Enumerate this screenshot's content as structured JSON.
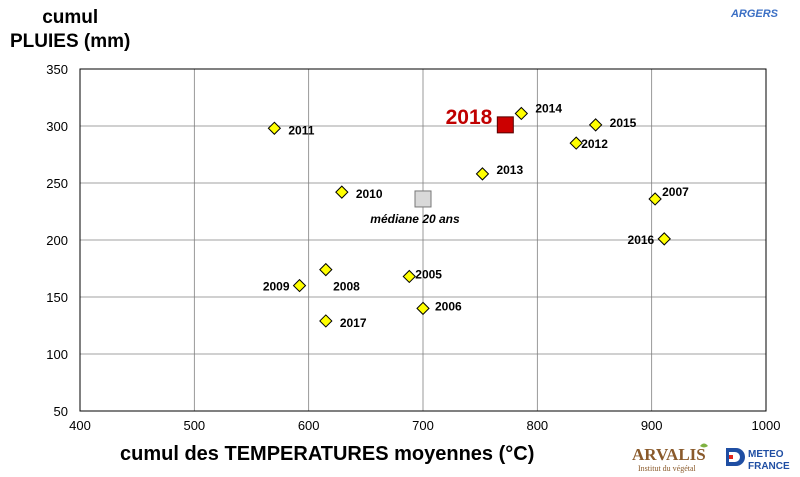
{
  "header": {
    "ylabel_line1": "cumul",
    "ylabel_line2": "PLUIES (mm)",
    "station": "ARGERS"
  },
  "footer": {
    "xlabel": "cumul des TEMPERATURES moyennes (°C)"
  },
  "logos": {
    "arvalis_name": "ARVALIS",
    "arvalis_sub": "Institut du végétal",
    "meteo_line1": "METEO",
    "meteo_line2": "FRANCE"
  },
  "colors": {
    "point_fill": "#ffff00",
    "highlight": "#cc0000",
    "highlight_label": "#c00000",
    "median_fill": "#d9d9d9",
    "grid": "#808080"
  },
  "chart_data": {
    "type": "scatter",
    "xlabel": "cumul des TEMPERATURES moyennes (°C)",
    "ylabel": "cumul PLUIES (mm)",
    "xlim": [
      400,
      1000
    ],
    "ylim": [
      50,
      350
    ],
    "xticks": [
      400,
      500,
      600,
      700,
      800,
      900,
      1000
    ],
    "yticks": [
      50,
      100,
      150,
      200,
      250,
      300,
      350
    ],
    "grid": true,
    "points": [
      {
        "label": "2011",
        "x": 570,
        "y": 298
      },
      {
        "label": "2014",
        "x": 786,
        "y": 311
      },
      {
        "label": "2015",
        "x": 851,
        "y": 301
      },
      {
        "label": "2012",
        "x": 834,
        "y": 285
      },
      {
        "label": "2013",
        "x": 752,
        "y": 258
      },
      {
        "label": "2010",
        "x": 629,
        "y": 242
      },
      {
        "label": "2007",
        "x": 903,
        "y": 236
      },
      {
        "label": "2016",
        "x": 911,
        "y": 201
      },
      {
        "label": "2008",
        "x": 615,
        "y": 174
      },
      {
        "label": "2005",
        "x": 688,
        "y": 168
      },
      {
        "label": "2009",
        "x": 592,
        "y": 160
      },
      {
        "label": "2006",
        "x": 700,
        "y": 140
      },
      {
        "label": "2017",
        "x": 615,
        "y": 129
      }
    ],
    "highlight": {
      "label": "2018",
      "x": 772,
      "y": 301
    },
    "median": {
      "label": "médiane 20 ans",
      "x": 700,
      "y": 236
    }
  }
}
